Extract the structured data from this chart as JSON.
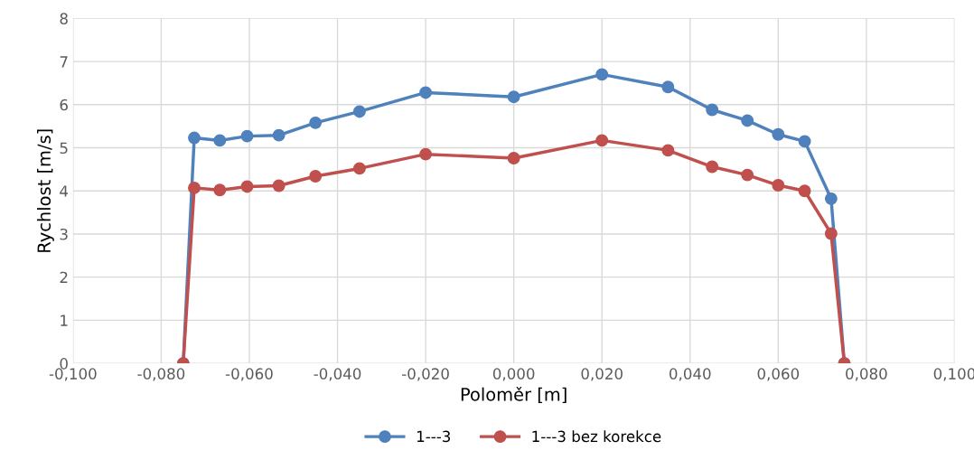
{
  "chart_data": {
    "type": "line",
    "xlabel": "Poloměr [m]",
    "ylabel": "Rychlost [m/s]",
    "xlim": [
      -0.1,
      0.1
    ],
    "xticks": [
      {
        "value": -0.1,
        "label": "-0,100"
      },
      {
        "value": -0.08,
        "label": "-0,080"
      },
      {
        "value": -0.06,
        "label": "-0,060"
      },
      {
        "value": -0.04,
        "label": "-0,040"
      },
      {
        "value": -0.02,
        "label": "-0,020"
      },
      {
        "value": 0,
        "label": "0,000"
      },
      {
        "value": 0.02,
        "label": "0,020"
      },
      {
        "value": 0.04,
        "label": "0,040"
      },
      {
        "value": 0.06,
        "label": "0,060"
      },
      {
        "value": 0.08,
        "label": "0,080"
      },
      {
        "value": 0.1,
        "label": "0,100"
      }
    ],
    "ylim": [
      0,
      8
    ],
    "yticks": [
      0,
      1,
      2,
      3,
      4,
      5,
      6,
      7,
      8
    ],
    "x": [
      -0.075,
      -0.0725,
      -0.0667,
      -0.0605,
      -0.0533,
      -0.045,
      -0.035,
      -0.02,
      0,
      0.02,
      0.035,
      0.045,
      0.053,
      0.06,
      0.066,
      0.072,
      0.075
    ],
    "series": [
      {
        "name": "1---3",
        "color": "#4f81bd",
        "values": [
          0,
          5.23,
          5.17,
          5.27,
          5.29,
          5.58,
          5.84,
          6.28,
          6.18,
          6.7,
          6.41,
          5.88,
          5.63,
          5.31,
          5.15,
          3.82,
          0
        ]
      },
      {
        "name": "1---3 bez korekce",
        "color": "#c0504d",
        "values": [
          0,
          4.07,
          4.02,
          4.1,
          4.12,
          4.34,
          4.52,
          4.85,
          4.76,
          5.17,
          4.94,
          4.56,
          4.37,
          4.13,
          4.0,
          3.01,
          0
        ]
      }
    ],
    "grid": true,
    "legend": "bottom",
    "marker": "circle",
    "line_style": "solid"
  }
}
